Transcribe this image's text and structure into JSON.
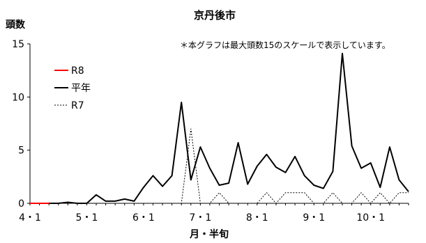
{
  "chart_data": {
    "type": "line",
    "title": "京丹後市",
    "ylabel": "頭数",
    "xlabel": "月・半旬",
    "note": "＊本グラフは最大頭数15のスケールで表示しています。",
    "ylim": [
      0,
      15
    ],
    "yticks": [
      0,
      5,
      10,
      15
    ],
    "xtick_labels": [
      "4・1",
      "5・1",
      "6・1",
      "7・1",
      "8・1",
      "9・1",
      "10・1"
    ],
    "xtick_index": [
      0,
      6,
      12,
      18,
      24,
      30,
      36
    ],
    "legend_position": "top-left",
    "series": [
      {
        "name": "R8",
        "color": "#ff0000",
        "style": "solid",
        "values": [
          0,
          0,
          0
        ]
      },
      {
        "name": "平年",
        "color": "#000000",
        "style": "solid",
        "values": [
          0,
          0,
          0,
          0,
          0.1,
          0,
          0,
          0.8,
          0.2,
          0.2,
          0.4,
          0.2,
          1.5,
          2.6,
          1.6,
          2.6,
          9.5,
          2.2,
          5.3,
          3.3,
          1.7,
          1.9,
          5.7,
          1.8,
          3.5,
          4.6,
          3.4,
          2.9,
          4.4,
          2.6,
          1.7,
          1.4,
          3.0,
          14.1,
          5.4,
          3.3,
          3.8,
          1.5,
          5.3,
          2.2,
          1.1
        ]
      },
      {
        "name": "R7",
        "color": "#000000",
        "style": "dotted",
        "values": [
          0,
          0,
          0,
          0,
          0,
          0,
          0,
          0,
          0,
          0,
          0,
          0,
          0,
          0,
          0,
          0,
          0,
          7.0,
          0,
          0,
          1.0,
          0,
          0,
          0,
          0,
          1.0,
          0,
          1.0,
          1.0,
          1.0,
          0,
          0,
          1.0,
          0,
          0,
          1.0,
          0,
          1.0,
          0,
          1.0,
          1.0
        ]
      }
    ]
  }
}
